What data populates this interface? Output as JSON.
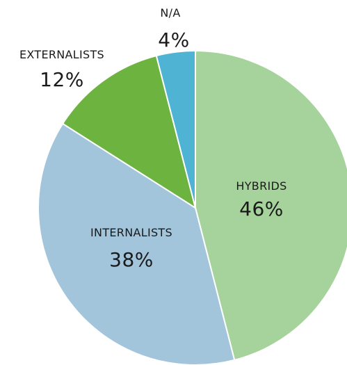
{
  "chart_data": {
    "type": "pie",
    "slices": [
      {
        "label": "HYBRIDS",
        "value": 46,
        "display": "46%",
        "color": "#a5d39b"
      },
      {
        "label": "INTERNALISTS",
        "value": 38,
        "display": "38%",
        "color": "#a2c5dc"
      },
      {
        "label": "EXTERNALISTS",
        "value": 12,
        "display": "12%",
        "color": "#6cb33f"
      },
      {
        "label": "N/A",
        "value": 4,
        "display": "4%",
        "color": "#4fb3d4"
      }
    ],
    "start_angle": "12 o'clock",
    "direction": "clockwise"
  }
}
